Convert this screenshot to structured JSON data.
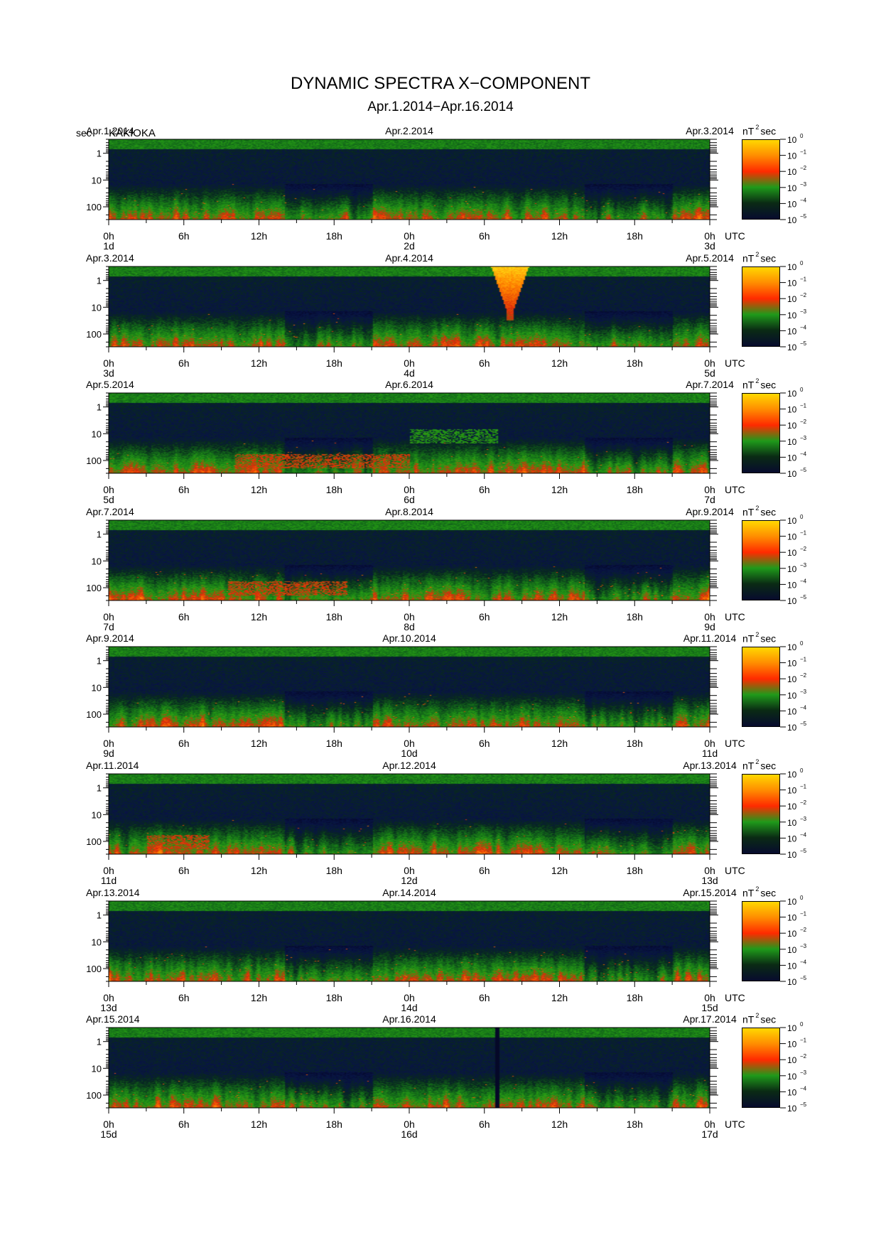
{
  "title": "DYNAMIC SPECTRA X−COMPONENT",
  "subtitle": "Apr.1.2014−Apr.16.2014",
  "y_unit": "sec",
  "station": "KAKIOKA",
  "colorbar": {
    "unit_prefix": "nT",
    "unit_sup": "2",
    "unit_suffix": "sec",
    "tick_base": "10",
    "tick_exps": [
      "0",
      "−1",
      "−2",
      "−3",
      "−4",
      "−5"
    ],
    "colors": [
      "#ffd800",
      "#ff8c00",
      "#ff2a00",
      "#1f9a1a",
      "#0a2a14",
      "#070b2e"
    ]
  },
  "x_tick_labels": [
    "0h",
    "6h",
    "12h",
    "18h",
    "0h",
    "6h",
    "12h",
    "18h",
    "0h"
  ],
  "utc_label": "UTC",
  "chart_data": {
    "type": "heatmap",
    "title": "DYNAMIC SPECTRA X−COMPONENT",
    "ylabel": "sec",
    "yscale": "log",
    "y_ticks": [
      "1",
      "10",
      "100"
    ],
    "ylim": [
      0.3,
      300
    ],
    "x_ticks_hours": [
      0,
      6,
      12,
      18,
      24,
      30,
      36,
      42,
      48
    ],
    "colorscale_range": [
      "10^-5",
      "10^0"
    ],
    "colorscale_unit": "nT^2 sec",
    "panels": [
      {
        "left_date": "Apr.1.2014",
        "mid_date": "Apr.2.2014",
        "right_date": "Apr.3.2014",
        "start_day": "1d",
        "mid_day": "2d",
        "end_day": "3d",
        "features": []
      },
      {
        "left_date": "Apr.3.2014",
        "mid_date": "Apr.4.2014",
        "right_date": "Apr.5.2014",
        "start_day": "3d",
        "mid_day": "4d",
        "end_day": "5d",
        "features": [
          {
            "type": "burst",
            "hour_start": 30.5,
            "hour_end": 33.5,
            "period_top": 0.3,
            "period_bottom": 30,
            "level": "10^0"
          }
        ]
      },
      {
        "left_date": "Apr.5.2014",
        "mid_date": "Apr.6.2014",
        "right_date": "Apr.7.2014",
        "start_day": "5d",
        "mid_day": "6d",
        "end_day": "7d",
        "features": [
          {
            "type": "band",
            "hour_start": 10,
            "hour_end": 24,
            "period": 100,
            "level": "10^-2"
          },
          {
            "type": "band",
            "hour_start": 24,
            "hour_end": 31,
            "period": 12,
            "level": "10^-3"
          }
        ]
      },
      {
        "left_date": "Apr.7.2014",
        "mid_date": "Apr.8.2014",
        "right_date": "Apr.9.2014",
        "start_day": "7d",
        "mid_day": "8d",
        "end_day": "9d",
        "features": [
          {
            "type": "band",
            "hour_start": 9.5,
            "hour_end": 19,
            "period": 100,
            "level": "10^-2"
          }
        ]
      },
      {
        "left_date": "Apr.9.2014",
        "mid_date": "Apr.10.2014",
        "right_date": "Apr.11.2014",
        "start_day": "9d",
        "mid_day": "10d",
        "end_day": "11d",
        "features": []
      },
      {
        "left_date": "Apr.11.2014",
        "mid_date": "Apr.12.2014",
        "right_date": "Apr.13.2014",
        "start_day": "11d",
        "mid_day": "12d",
        "end_day": "13d",
        "features": [
          {
            "type": "band",
            "hour_start": 3,
            "hour_end": 8,
            "period": 100,
            "level": "10^-2"
          }
        ]
      },
      {
        "left_date": "Apr.13.2014",
        "mid_date": "Apr.14.2014",
        "right_date": "Apr.15.2014",
        "start_day": "13d",
        "mid_day": "14d",
        "end_day": "15d",
        "features": []
      },
      {
        "left_date": "Apr.15.2014",
        "mid_date": "Apr.16.2014",
        "right_date": "Apr.17.2014",
        "start_day": "15d",
        "mid_day": "16d",
        "end_day": "17d",
        "features": [
          {
            "type": "gap",
            "hour_start": 30.8,
            "hour_end": 31.2
          }
        ]
      }
    ]
  }
}
